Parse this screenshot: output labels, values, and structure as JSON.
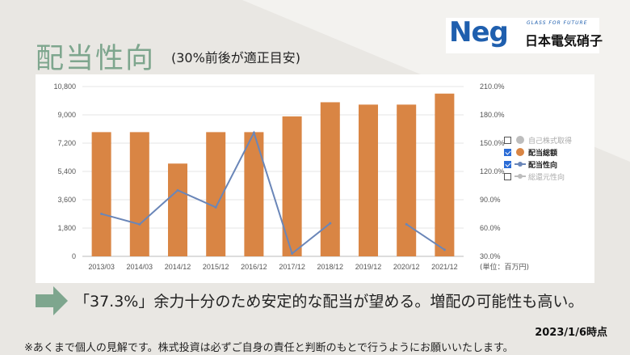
{
  "header": {
    "title": "配当性向",
    "subtitle": "(30%前後が適正目安)"
  },
  "logo": {
    "brand": "Neg",
    "tagline": "GLASS FOR FUTURE",
    "company": "日本電気硝子"
  },
  "message": "「37.3%」余力十分のため安定的な配当が望める。増配の可能性も高い。",
  "date": "2023/1/6時点",
  "disclaimer": "※あくまで個人の見解です。株式投資は必ずご自身の責任と判断のもとで行うようにお願いいたします。",
  "colors": {
    "bar": "#d98544",
    "line": "#6a86b8",
    "title": "#7ea68e",
    "arrow": "#7ea68e",
    "legend_gray": "#bdbdbd"
  },
  "chart_data": {
    "type": "bar",
    "categories": [
      "2013/03",
      "2014/03",
      "2014/12",
      "2015/12",
      "2016/12",
      "2017/12",
      "2018/12",
      "2019/12",
      "2020/12",
      "2021/12"
    ],
    "unit_label": "(単位：百万円)",
    "left_axis": {
      "ylim": [
        0,
        10800
      ],
      "ticks": [
        0,
        1800,
        3600,
        5400,
        7200,
        9000,
        10800
      ],
      "tick_labels": [
        "0",
        "1,800",
        "3,600",
        "5,400",
        "7,200",
        "9,000",
        "10,800"
      ]
    },
    "right_axis": {
      "ylim": [
        30,
        210
      ],
      "ticks": [
        30,
        60,
        90,
        120,
        150,
        180,
        210
      ],
      "tick_labels": [
        "30.0%",
        "60.0%",
        "90.0%",
        "120.0%",
        "150.0%",
        "180.0%",
        "210.0%"
      ]
    },
    "series": [
      {
        "name": "配当総額",
        "type": "bar",
        "axis": "left",
        "values": [
          7900,
          7900,
          5900,
          7900,
          7900,
          8900,
          9800,
          9650,
          9650,
          10350
        ]
      },
      {
        "name": "配当性向",
        "type": "line",
        "axis": "right",
        "values": [
          75,
          64,
          100,
          82,
          161,
          33,
          65,
          null,
          64,
          37
        ]
      }
    ],
    "legend": {
      "placement": "right",
      "items": [
        {
          "label": "自己株式取得",
          "checked": false,
          "marker": "dot",
          "color": "#bdbdbd"
        },
        {
          "label": "配当総額",
          "checked": true,
          "marker": "dot",
          "color": "#d98544"
        },
        {
          "label": "配当性向",
          "checked": true,
          "marker": "line",
          "color": "#6a86b8"
        },
        {
          "label": "総還元性向",
          "checked": false,
          "marker": "line",
          "color": "#bdbdbd"
        }
      ]
    },
    "grid": true
  }
}
